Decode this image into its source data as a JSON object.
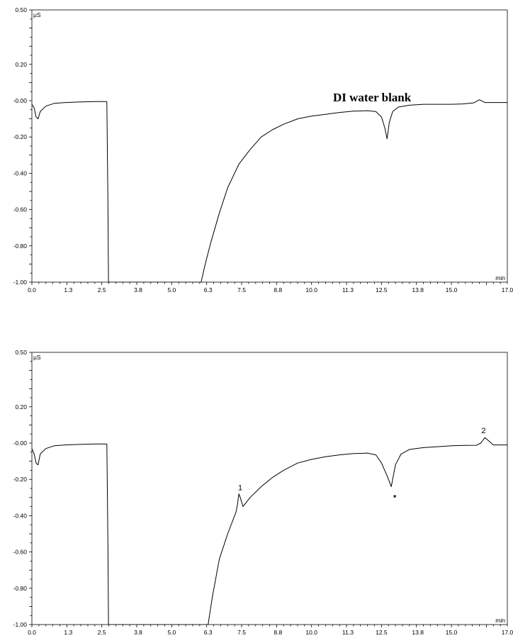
{
  "chart_data": [
    {
      "type": "line",
      "title": "DI water blank",
      "y_unit": "µS",
      "x_unit": "min",
      "ylim": [
        -1.0,
        0.5
      ],
      "xlim": [
        0.0,
        17.0
      ],
      "y_tick_labels": [
        "0.50",
        "0.20",
        "-0.00",
        "-0.20",
        "-0.40",
        "-0.60",
        "-0.80",
        "-1.00"
      ],
      "x_tick_labels": [
        "0.0",
        "1.3",
        "2.5",
        "3.8",
        "5.0",
        "6.3",
        "7.5",
        "8.8",
        "10.0",
        "11.3",
        "12.5",
        "13.8",
        "15.0",
        "17.0"
      ],
      "grid": false,
      "series": [
        {
          "x": [
            0.0,
            0.08,
            0.15,
            0.22,
            0.3,
            0.5,
            0.8,
            1.2,
            1.6,
            2.0,
            2.3,
            2.6,
            2.68,
            2.72,
            2.74,
            6.05,
            6.2,
            6.4,
            6.7,
            7.0,
            7.4,
            7.8,
            8.2,
            8.6,
            9.0,
            9.5,
            10.0,
            10.5,
            11.0,
            11.5,
            12.0,
            12.3,
            12.5,
            12.62,
            12.7,
            12.78,
            12.9,
            13.1,
            13.5,
            14.0,
            14.5,
            15.0,
            15.4,
            15.8,
            16.0,
            16.2,
            16.6,
            17.0
          ],
          "y": [
            -0.02,
            -0.04,
            -0.09,
            -0.1,
            -0.06,
            -0.03,
            -0.015,
            -0.01,
            -0.008,
            -0.006,
            -0.005,
            -0.005,
            -0.006,
            -0.6,
            -1.0,
            -1.0,
            -0.9,
            -0.78,
            -0.62,
            -0.48,
            -0.35,
            -0.27,
            -0.2,
            -0.16,
            -0.13,
            -0.1,
            -0.085,
            -0.075,
            -0.065,
            -0.058,
            -0.055,
            -0.06,
            -0.09,
            -0.15,
            -0.21,
            -0.12,
            -0.06,
            -0.035,
            -0.025,
            -0.02,
            -0.02,
            -0.02,
            -0.018,
            -0.012,
            0.005,
            -0.01,
            -0.01,
            -0.01
          ]
        }
      ],
      "annotations": []
    },
    {
      "type": "line",
      "title": "",
      "y_unit": "µS",
      "x_unit": "min",
      "ylim": [
        -1.0,
        0.5
      ],
      "xlim": [
        0.0,
        17.0
      ],
      "y_tick_labels": [
        "0.50",
        "0.20",
        "-0.00",
        "-0.20",
        "-0.40",
        "-0.60",
        "-0.80",
        "-1.00"
      ],
      "x_tick_labels": [
        "0.0",
        "1.3",
        "2.5",
        "3.8",
        "5.0",
        "6.3",
        "7.5",
        "8.8",
        "10.0",
        "11.3",
        "12.5",
        "13.8",
        "15.0",
        "17.0"
      ],
      "grid": false,
      "series": [
        {
          "x": [
            0.0,
            0.08,
            0.15,
            0.22,
            0.3,
            0.5,
            0.8,
            1.2,
            1.6,
            2.0,
            2.3,
            2.6,
            2.68,
            2.72,
            2.74,
            6.3,
            6.45,
            6.7,
            7.0,
            7.3,
            7.35,
            7.4,
            7.45,
            7.55,
            7.8,
            8.2,
            8.6,
            9.0,
            9.5,
            10.0,
            10.5,
            11.0,
            11.5,
            12.0,
            12.3,
            12.5,
            12.7,
            12.85,
            13.0,
            13.2,
            13.5,
            14.0,
            14.5,
            15.0,
            15.5,
            15.9,
            16.05,
            16.2,
            16.5,
            17.0
          ],
          "y": [
            -0.03,
            -0.06,
            -0.11,
            -0.12,
            -0.06,
            -0.03,
            -0.015,
            -0.01,
            -0.008,
            -0.006,
            -0.005,
            -0.005,
            -0.006,
            -0.6,
            -1.0,
            -1.0,
            -0.85,
            -0.64,
            -0.5,
            -0.38,
            -0.34,
            -0.28,
            -0.3,
            -0.35,
            -0.3,
            -0.24,
            -0.19,
            -0.15,
            -0.11,
            -0.09,
            -0.075,
            -0.065,
            -0.058,
            -0.055,
            -0.065,
            -0.11,
            -0.18,
            -0.24,
            -0.12,
            -0.06,
            -0.035,
            -0.025,
            -0.02,
            -0.015,
            -0.013,
            -0.012,
            0.0,
            0.03,
            -0.01,
            -0.01
          ]
        }
      ],
      "annotations": [
        {
          "label": "1",
          "x": 7.4,
          "y": -0.28
        },
        {
          "label": "*",
          "x": 12.95,
          "y": -0.26
        },
        {
          "label": "2",
          "x": 16.1,
          "y": 0.035
        }
      ]
    }
  ]
}
